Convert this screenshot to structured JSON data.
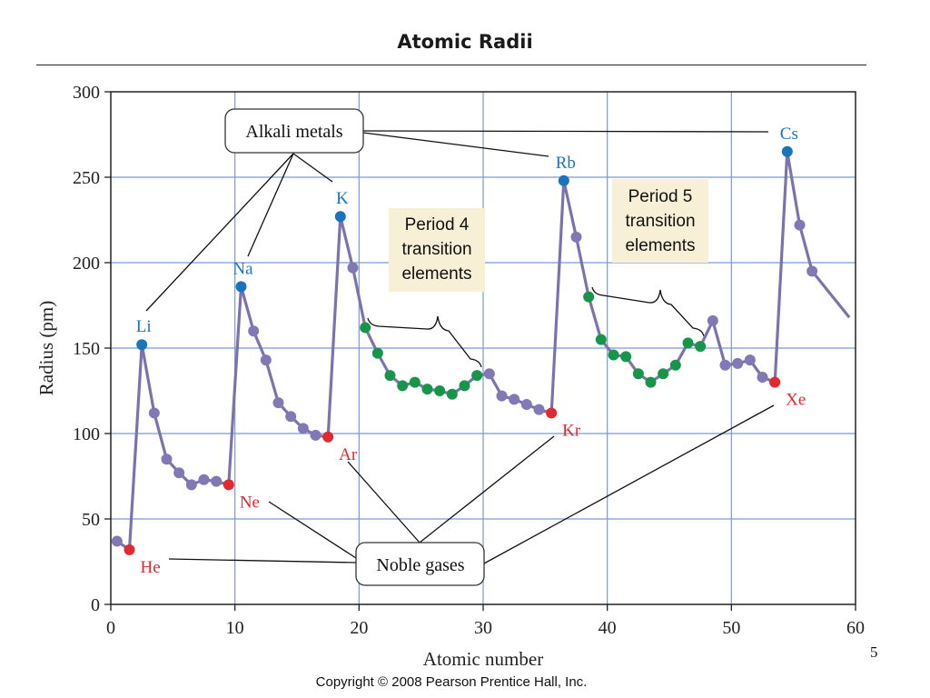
{
  "slide": {
    "title": "Atomic Radii",
    "copyright": "Copyright © 2008 Pearson Prentice Hall, Inc.",
    "slide_number": "5"
  },
  "colors": {
    "line": "#7B73AE",
    "default_point": "#8179B6",
    "alkali": "#1875BC",
    "noble": "#DE2A30",
    "transition": "#17964A",
    "grid": "#7A9BD0",
    "callout_fill": "#F7F0D6"
  },
  "chart_data": {
    "type": "line",
    "title": "",
    "xlabel": "Atomic number",
    "ylabel": "Radius (pm)",
    "xlim": [
      0,
      60
    ],
    "ylim": [
      0,
      300
    ],
    "xticks": [
      "0",
      "10",
      "20",
      "30",
      "40",
      "50",
      "60"
    ],
    "yticks": [
      "0",
      "50",
      "100",
      "150",
      "200",
      "250",
      "300"
    ],
    "grid": true,
    "categories_legend": {
      "alkali": "Alkali metals",
      "noble": "Noble gases",
      "period4": "Period 4 transition elements",
      "period5": "Period 5 transition elements"
    },
    "series": [
      {
        "points": [
          {
            "x": 1,
            "y": 37,
            "group": "other"
          },
          {
            "x": 2,
            "y": 32,
            "group": "noble",
            "label": "He"
          },
          {
            "x": 3,
            "y": 152,
            "group": "alkali",
            "label": "Li"
          },
          {
            "x": 4,
            "y": 112,
            "group": "other"
          },
          {
            "x": 5,
            "y": 85,
            "group": "other"
          },
          {
            "x": 6,
            "y": 77,
            "group": "other"
          },
          {
            "x": 7,
            "y": 70,
            "group": "other"
          },
          {
            "x": 8,
            "y": 73,
            "group": "other"
          },
          {
            "x": 9,
            "y": 72,
            "group": "other"
          },
          {
            "x": 10,
            "y": 70,
            "group": "noble",
            "label": "Ne"
          },
          {
            "x": 11,
            "y": 186,
            "group": "alkali",
            "label": "Na"
          },
          {
            "x": 12,
            "y": 160,
            "group": "other"
          },
          {
            "x": 13,
            "y": 143,
            "group": "other"
          },
          {
            "x": 14,
            "y": 118,
            "group": "other"
          },
          {
            "x": 15,
            "y": 110,
            "group": "other"
          },
          {
            "x": 16,
            "y": 103,
            "group": "other"
          },
          {
            "x": 17,
            "y": 99,
            "group": "other"
          },
          {
            "x": 18,
            "y": 98,
            "group": "noble",
            "label": "Ar"
          },
          {
            "x": 19,
            "y": 227,
            "group": "alkali",
            "label": "K"
          },
          {
            "x": 20,
            "y": 197,
            "group": "other"
          },
          {
            "x": 21,
            "y": 162,
            "group": "transition"
          },
          {
            "x": 22,
            "y": 147,
            "group": "transition"
          },
          {
            "x": 23,
            "y": 134,
            "group": "transition"
          },
          {
            "x": 24,
            "y": 128,
            "group": "transition"
          },
          {
            "x": 25,
            "y": 130,
            "group": "transition"
          },
          {
            "x": 26,
            "y": 126,
            "group": "transition"
          },
          {
            "x": 27,
            "y": 125,
            "group": "transition"
          },
          {
            "x": 28,
            "y": 123,
            "group": "transition"
          },
          {
            "x": 29,
            "y": 128,
            "group": "transition"
          },
          {
            "x": 30,
            "y": 134,
            "group": "transition"
          },
          {
            "x": 31,
            "y": 135,
            "group": "other"
          },
          {
            "x": 32,
            "y": 122,
            "group": "other"
          },
          {
            "x": 33,
            "y": 120,
            "group": "other"
          },
          {
            "x": 34,
            "y": 117,
            "group": "other"
          },
          {
            "x": 35,
            "y": 114,
            "group": "other"
          },
          {
            "x": 36,
            "y": 112,
            "group": "noble",
            "label": "Kr"
          },
          {
            "x": 37,
            "y": 248,
            "group": "alkali",
            "label": "Rb"
          },
          {
            "x": 38,
            "y": 215,
            "group": "other"
          },
          {
            "x": 39,
            "y": 180,
            "group": "transition"
          },
          {
            "x": 40,
            "y": 155,
            "group": "transition"
          },
          {
            "x": 41,
            "y": 146,
            "group": "transition"
          },
          {
            "x": 42,
            "y": 145,
            "group": "transition"
          },
          {
            "x": 43,
            "y": 135,
            "group": "transition"
          },
          {
            "x": 44,
            "y": 130,
            "group": "transition"
          },
          {
            "x": 45,
            "y": 135,
            "group": "transition"
          },
          {
            "x": 46,
            "y": 140,
            "group": "transition"
          },
          {
            "x": 47,
            "y": 153,
            "group": "transition"
          },
          {
            "x": 48,
            "y": 151,
            "group": "transition"
          },
          {
            "x": 49,
            "y": 166,
            "group": "other"
          },
          {
            "x": 50,
            "y": 140,
            "group": "other"
          },
          {
            "x": 51,
            "y": 141,
            "group": "other"
          },
          {
            "x": 52,
            "y": 143,
            "group": "other"
          },
          {
            "x": 53,
            "y": 133,
            "group": "other"
          },
          {
            "x": 54,
            "y": 130,
            "group": "noble",
            "label": "Xe"
          },
          {
            "x": 55,
            "y": 265,
            "group": "alkali",
            "label": "Cs"
          },
          {
            "x": 56,
            "y": 222,
            "group": "other"
          },
          {
            "x": 57,
            "y": 195,
            "group": "other"
          },
          {
            "x": 60,
            "y": 168,
            "group": "other"
          }
        ]
      }
    ],
    "annotations": {
      "alkali_metals": "Alkali metals",
      "noble_gases": "Noble gases",
      "period4_lines": [
        "Period 4",
        "transition",
        "elements"
      ],
      "period5_lines": [
        "Period 5",
        "transition",
        "elements"
      ]
    }
  }
}
